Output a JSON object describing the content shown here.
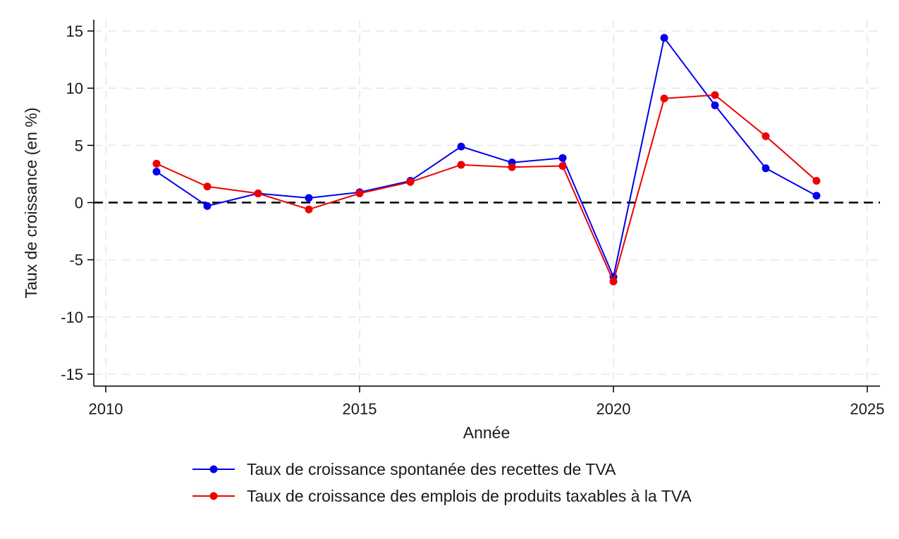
{
  "chart_data": {
    "type": "line",
    "xlabel": "Année",
    "ylabel": "Taux de croissance (en %)",
    "xlim": [
      2010,
      2025
    ],
    "ylim": [
      -15,
      15
    ],
    "xticks": [
      2010,
      2015,
      2020,
      2025
    ],
    "yticks": [
      15,
      10,
      5,
      0,
      -5,
      -10,
      -15
    ],
    "grid": true,
    "reference_line": {
      "y": 0,
      "style": "dashed",
      "color": "#000000"
    },
    "legend_position": "bottom",
    "x": [
      2011,
      2012,
      2013,
      2014,
      2015,
      2016,
      2017,
      2018,
      2019,
      2020,
      2021,
      2022,
      2023,
      2024
    ],
    "series": [
      {
        "name": "Taux de croissance spontanée des recettes de TVA",
        "color": "#0000ee",
        "values": [
          2.7,
          -0.3,
          0.8,
          0.4,
          0.9,
          1.9,
          4.9,
          3.5,
          3.9,
          -6.5,
          14.4,
          8.5,
          3.0,
          0.6
        ]
      },
      {
        "name": "Taux de croissance des emplois de produits taxables à la TVA",
        "color": "#ee0000",
        "values": [
          3.4,
          1.4,
          0.8,
          -0.6,
          0.8,
          1.8,
          3.3,
          3.1,
          3.2,
          -6.9,
          9.1,
          9.4,
          5.8,
          1.9
        ]
      }
    ]
  }
}
